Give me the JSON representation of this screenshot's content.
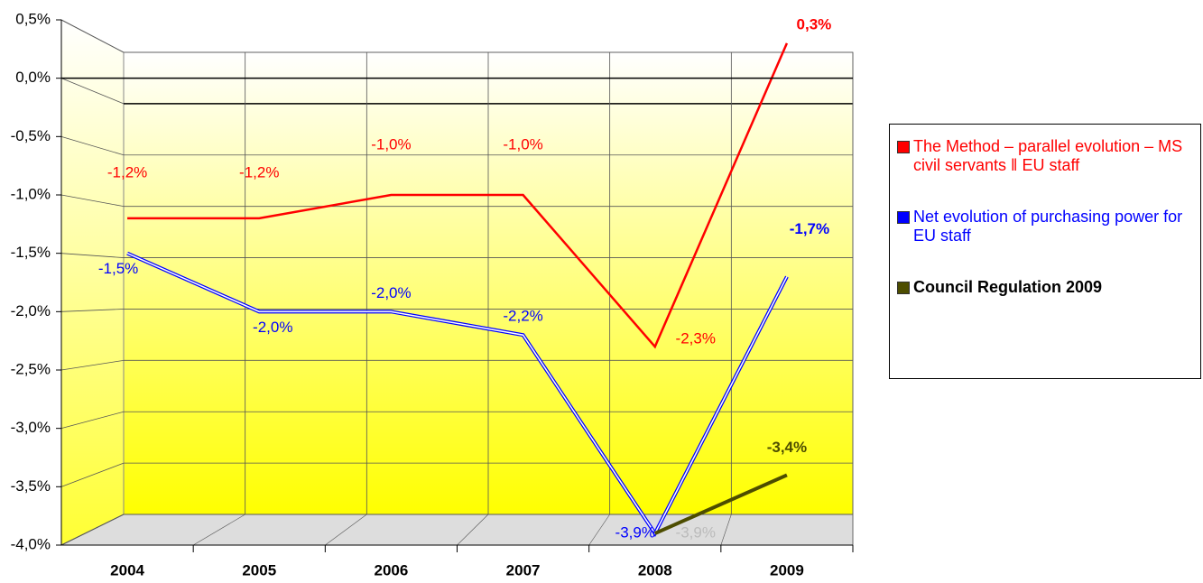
{
  "chart_data": {
    "type": "line",
    "categories": [
      "2004",
      "2005",
      "2006",
      "2007",
      "2008",
      "2009"
    ],
    "series": [
      {
        "name": "The Method – parallel evolution – MS civil servants ‖ EU staff",
        "color": "#ff0000",
        "values": [
          -1.2,
          -1.2,
          -1.0,
          -1.0,
          -2.3,
          0.3
        ],
        "value_labels": [
          "-1,2%",
          "-1,2%",
          "-1,0%",
          "-1,0%",
          "-2,3%",
          "0,3%"
        ]
      },
      {
        "name": "Net evolution of purchasing power for EU staff",
        "color": "#0000ff",
        "values": [
          -1.5,
          -2.0,
          -2.0,
          -2.2,
          -3.9,
          -1.7
        ],
        "value_labels": [
          "-1,5%",
          "-2,0%",
          "-2,0%",
          "-2,2%",
          "-3,9%",
          "-1,7%"
        ]
      },
      {
        "name": "Council Regulation 2009",
        "color": "#4d4d00",
        "values": [
          null,
          null,
          null,
          null,
          -3.9,
          -3.4
        ],
        "value_labels": [
          null,
          null,
          null,
          null,
          "-3,9%",
          "-3,4%"
        ]
      }
    ],
    "ylim": [
      -4.0,
      0.5
    ],
    "yticks": [
      {
        "value": -4.0,
        "label": "-4,0%"
      },
      {
        "value": -3.5,
        "label": "-3,5%"
      },
      {
        "value": -3.0,
        "label": "-3,0%"
      },
      {
        "value": -2.5,
        "label": "-2,5%"
      },
      {
        "value": -2.0,
        "label": "-2,0%"
      },
      {
        "value": -1.5,
        "label": "-1,5%"
      },
      {
        "value": -1.0,
        "label": "-1,0%"
      },
      {
        "value": -0.5,
        "label": "-0,5%"
      },
      {
        "value": 0.0,
        "label": "0,0%"
      },
      {
        "value": 0.5,
        "label": "0,5%"
      }
    ],
    "grid": true,
    "legend": "right"
  }
}
